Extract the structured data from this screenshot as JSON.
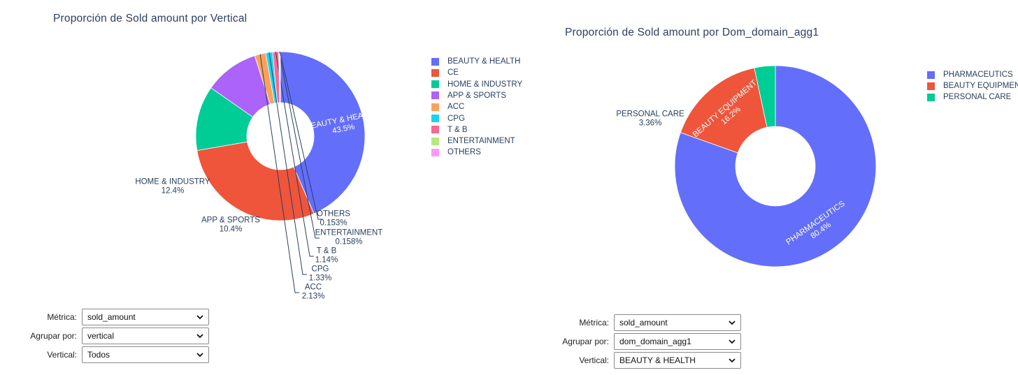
{
  "charts": [
    {
      "title": "Proporción de Sold amount por Vertical",
      "controls": [
        {
          "label": "Métrica:",
          "value": "sold_amount"
        },
        {
          "label": "Agrupar por:",
          "value": "vertical"
        },
        {
          "label": "Vertical:",
          "value": "Todos"
        }
      ]
    },
    {
      "title": "Proporción de Sold amount por Dom_domain_agg1",
      "controls": [
        {
          "label": "Métrica:",
          "value": "sold_amount"
        },
        {
          "label": "Agrupar por:",
          "value": "dom_domain_agg1"
        },
        {
          "label": "Vertical:",
          "value": "BEAUTY & HEALTH"
        }
      ]
    }
  ],
  "chart_data": [
    {
      "type": "pie",
      "hole": true,
      "title": "Proporción de Sold amount por Vertical",
      "labels": [
        "BEAUTY & HEALTH",
        "CE",
        "HOME & INDUSTRY",
        "APP & SPORTS",
        "ACC",
        "CPG",
        "T & B",
        "ENTERTAINMENT",
        "OTHERS"
      ],
      "values": [
        43.5,
        28.8,
        12.4,
        10.4,
        2.13,
        1.33,
        1.14,
        0.158,
        0.153
      ],
      "text": [
        "43.5%",
        "28.8%",
        "12.4%",
        "10.4%",
        "2.13%",
        "1.33%",
        "1.14%",
        "0.158%",
        "0.153%"
      ],
      "colors": [
        "#636efa",
        "#EF553B",
        "#00cc96",
        "#ab63fa",
        "#FFA15A",
        "#19d3f3",
        "#FF6692",
        "#B6E880",
        "#FF97FF"
      ],
      "legend_position": "right"
    },
    {
      "type": "pie",
      "hole": true,
      "title": "Proporción de Sold amount por Dom_domain_agg1",
      "labels": [
        "PHARMACEUTICS",
        "BEAUTY EQUIPMENT",
        "PERSONAL CARE"
      ],
      "values": [
        80.4,
        16.2,
        3.36
      ],
      "text": [
        "80.4%",
        "16.2%",
        "3.36%"
      ],
      "colors": [
        "#636efa",
        "#EF553B",
        "#00cc96"
      ],
      "legend_position": "right"
    }
  ]
}
